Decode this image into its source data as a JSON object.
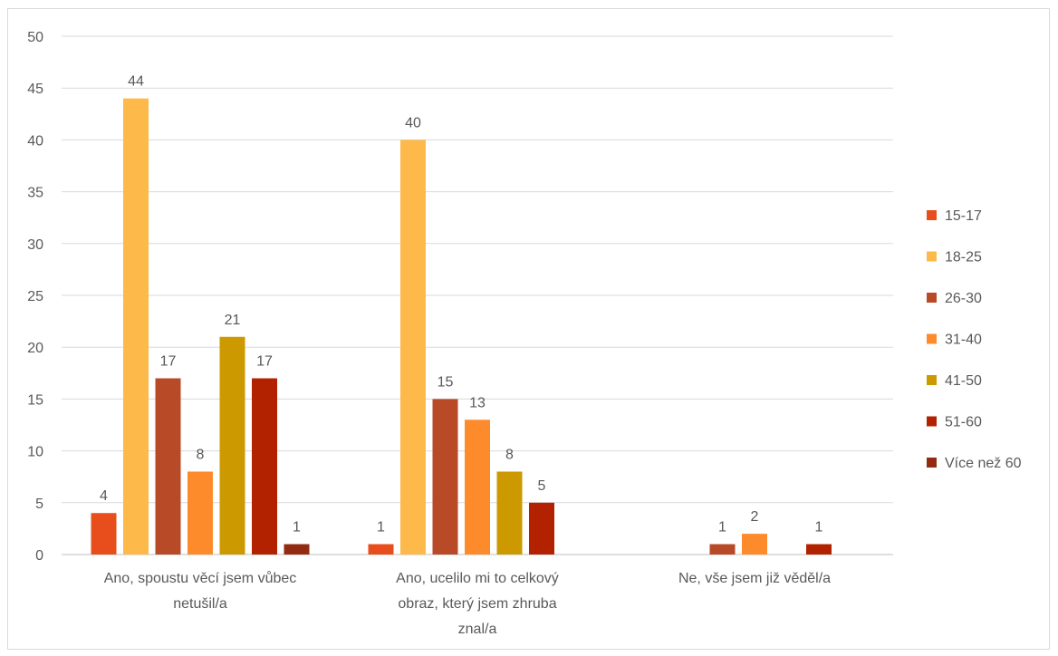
{
  "chart_data": {
    "type": "bar",
    "title": "",
    "xlabel": "",
    "ylabel": "",
    "ylim": [
      0,
      50
    ],
    "yticks": [
      0,
      5,
      10,
      15,
      20,
      25,
      30,
      35,
      40,
      45,
      50
    ],
    "grid": true,
    "legend_position": "right",
    "categories": [
      [
        "Ano, spoustu věcí jsem vůbec",
        "netušil/a"
      ],
      [
        "Ano, ucelilo mi to celkový",
        "obraz, který jsem zhruba",
        "znal/a"
      ],
      [
        "Ne, vše jsem již věděl/a"
      ]
    ],
    "series": [
      {
        "name": "15-17",
        "color": "#e84e1c",
        "values": [
          4,
          1,
          null
        ]
      },
      {
        "name": "18-25",
        "color": "#fdb94a",
        "values": [
          44,
          40,
          null
        ]
      },
      {
        "name": "26-30",
        "color": "#b84a28",
        "values": [
          17,
          15,
          1
        ]
      },
      {
        "name": "31-40",
        "color": "#fd8a2b",
        "values": [
          8,
          13,
          2
        ]
      },
      {
        "name": "41-50",
        "color": "#cc9900",
        "values": [
          21,
          8,
          null
        ]
      },
      {
        "name": "51-60",
        "color": "#b22200",
        "values": [
          17,
          5,
          1
        ]
      },
      {
        "name": "Více než 60",
        "color": "#922b12",
        "values": [
          1,
          null,
          null
        ]
      }
    ]
  }
}
